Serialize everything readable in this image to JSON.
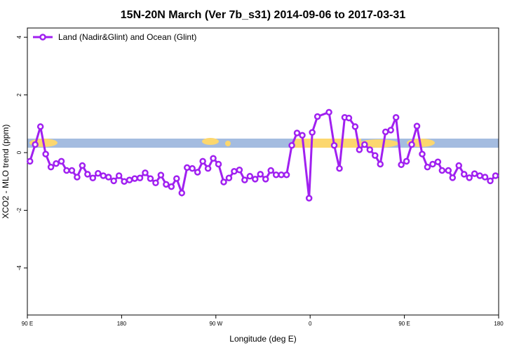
{
  "chart_data": {
    "type": "line",
    "title": "15N-20N March (Ver 7b_s31)   2014-09-06 to 2017-03-31",
    "x_label": "Longitude (deg E)",
    "y_label": "XCO2 - MLO trend (ppm)",
    "xlim": [
      90,
      540
    ],
    "ylim": [
      -5.63,
      4.32
    ],
    "xticks": [
      {
        "value": 90,
        "label": "90 E"
      },
      180,
      {
        "value": 270,
        "label": "90 W"
      },
      {
        "value": 360,
        "label": "0"
      },
      {
        "value": 450,
        "label": "90 E"
      },
      {
        "value": 540,
        "label": "180"
      }
    ],
    "yticks": [
      -4,
      -2,
      0,
      2,
      4
    ],
    "legend_position": "top-left",
    "x": [
      92.5,
      97.5,
      102.5,
      107.5,
      112.5,
      117.5,
      122.5,
      127.5,
      132.5,
      137.5,
      142.5,
      147.5,
      152.5,
      157.5,
      162.5,
      167.5,
      172.5,
      177.5,
      182.5,
      187.5,
      192.5,
      197.5,
      202.5,
      207.5,
      212.5,
      217.5,
      222.5,
      227.5,
      232.5,
      237.5,
      242.5,
      247.5,
      252.5,
      257.5,
      262.5,
      267.5,
      272.5,
      277.5,
      282.5,
      287.5,
      292.5,
      297.5,
      302.5,
      307.5,
      312.5,
      317.5,
      322.5,
      327.5,
      332.5,
      337.5,
      342.5,
      347.5,
      352.5,
      359,
      362,
      367,
      378,
      383,
      388,
      393,
      397,
      403,
      407,
      412,
      417,
      422,
      427,
      432,
      437,
      442,
      447,
      452,
      457,
      462,
      467,
      472,
      477,
      482,
      486,
      492,
      496,
      502,
      507,
      512,
      517,
      522,
      527,
      532,
      537
    ],
    "series": [
      {
        "name": "Land (Nadir&Glint) and Ocean (Glint)",
        "color": "#a020f0",
        "values": [
          -0.3,
          0.28,
          0.9,
          -0.05,
          -0.5,
          -0.38,
          -0.3,
          -0.62,
          -0.62,
          -0.85,
          -0.45,
          -0.75,
          -0.88,
          -0.72,
          -0.8,
          -0.85,
          -0.98,
          -0.8,
          -1.0,
          -0.95,
          -0.9,
          -0.88,
          -0.7,
          -0.9,
          -1.05,
          -0.78,
          -1.1,
          -1.18,
          -0.9,
          -1.4,
          -0.52,
          -0.55,
          -0.68,
          -0.3,
          -0.55,
          -0.2,
          -0.4,
          -1.02,
          -0.88,
          -0.65,
          -0.6,
          -0.95,
          -0.82,
          -0.92,
          -0.75,
          -0.92,
          -0.62,
          -0.77,
          -0.77,
          -0.77,
          0.25,
          0.68,
          0.6,
          -1.58,
          0.7,
          1.25,
          1.4,
          0.25,
          -0.55,
          1.22,
          1.2,
          0.9,
          0.1,
          0.28,
          0.1,
          -0.1,
          -0.4,
          0.72,
          0.78,
          1.22,
          -0.42,
          -0.3,
          0.28,
          0.92,
          -0.05,
          -0.5,
          -0.4,
          -0.32,
          -0.62,
          -0.62,
          -0.87,
          -0.45,
          -0.75,
          -0.87,
          -0.73,
          -0.8,
          -0.85,
          -0.98,
          -0.8
        ]
      }
    ]
  }
}
